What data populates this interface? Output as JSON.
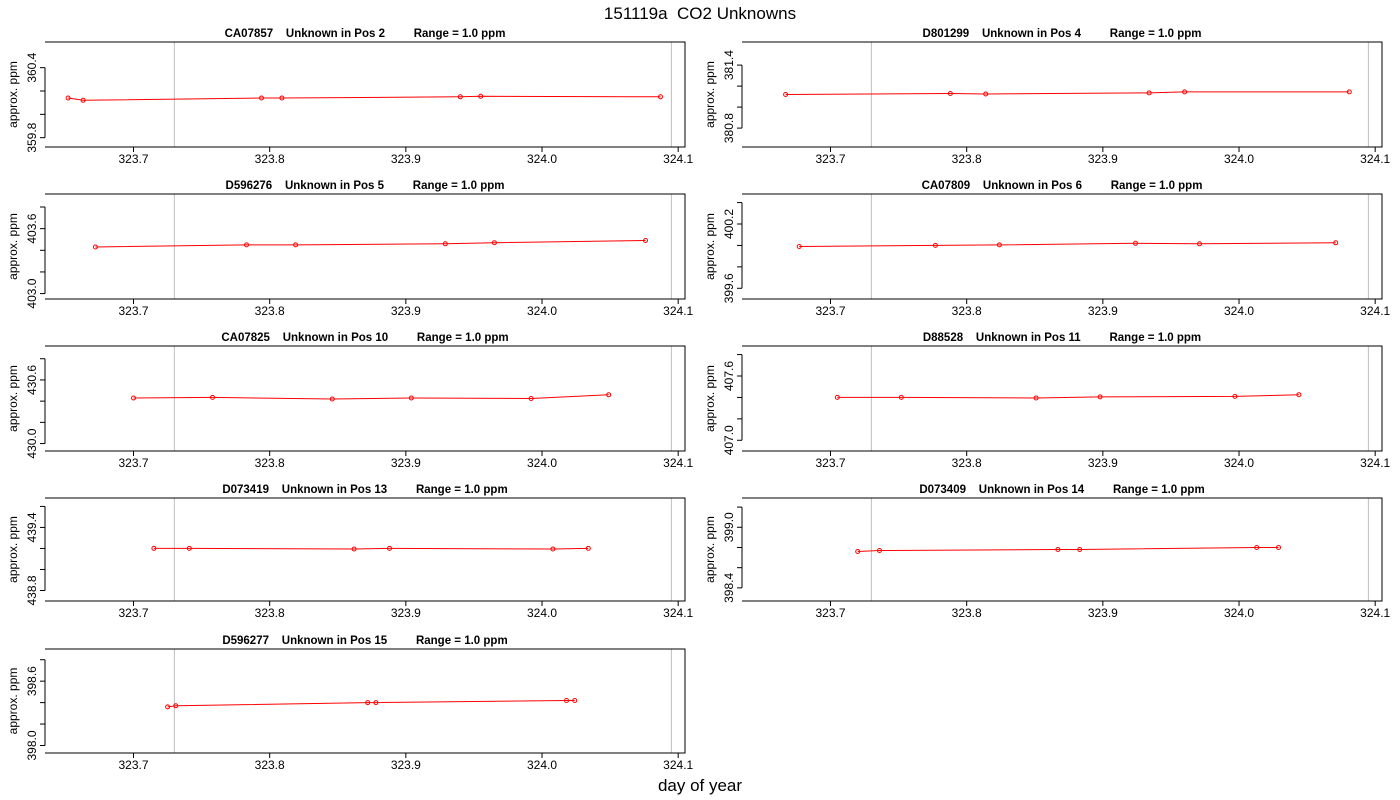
{
  "title": "151119a  CO2 Unknowns",
  "xlabel": "day of year",
  "colors": {
    "series": "#ff0000",
    "frame": "#000000",
    "vline": "#bebebe"
  },
  "chart_data": [
    {
      "type": "line",
      "title": "CA07857    Unknown in Pos 2         Range = 1.0 ppm",
      "ylabel": "approx. ppm",
      "xlim": [
        323.635,
        324.105
      ],
      "ylim": [
        359.72,
        360.62
      ],
      "xticks": [
        "323.7",
        "323.8",
        "323.9",
        "324.0",
        "324.1"
      ],
      "yticks": [
        "359.8",
        "360.0",
        "360.2",
        "360.4"
      ],
      "yticks_labeled": [
        "359.8",
        "360.4"
      ],
      "vlines": [
        323.73,
        324.095
      ],
      "x": [
        323.652,
        323.663,
        323.794,
        323.809,
        323.94,
        323.955,
        324.087
      ],
      "y": [
        360.14,
        360.12,
        360.14,
        360.14,
        360.15,
        360.155,
        360.15
      ]
    },
    {
      "type": "line",
      "title": "D801299    Unknown in Pos 4         Range = 1.0 ppm",
      "ylabel": "approx. ppm",
      "xlim": [
        323.635,
        324.105
      ],
      "ylim": [
        380.62,
        381.62
      ],
      "xticks": [
        "323.7",
        "323.8",
        "323.9",
        "324.0",
        "324.1"
      ],
      "yticks": [
        "380.8",
        "381.0",
        "381.2",
        "381.4"
      ],
      "yticks_labeled": [
        "380.8",
        "381.4"
      ],
      "vlines": [
        323.73,
        324.095
      ],
      "x": [
        323.667,
        323.788,
        323.814,
        323.934,
        323.96,
        324.081
      ],
      "y": [
        381.12,
        381.13,
        381.125,
        381.135,
        381.145,
        381.145
      ]
    },
    {
      "type": "line",
      "title": "D596276    Unknown in Pos 5         Range = 1.0 ppm",
      "ylabel": "approx. ppm",
      "xlim": [
        323.635,
        324.105
      ],
      "ylim": [
        402.95,
        403.92
      ],
      "xticks": [
        "323.7",
        "323.8",
        "323.9",
        "324.0",
        "324.1"
      ],
      "yticks": [
        "403.0",
        "403.2",
        "403.4",
        "403.6",
        "403.8"
      ],
      "yticks_labeled": [
        "403.0",
        "403.6"
      ],
      "vlines": [
        323.73,
        324.095
      ],
      "x": [
        323.672,
        323.783,
        323.819,
        323.929,
        323.965,
        324.076
      ],
      "y": [
        403.43,
        403.45,
        403.45,
        403.46,
        403.47,
        403.49
      ]
    },
    {
      "type": "line",
      "title": "CA07809    Unknown in Pos 6         Range = 1.0 ppm",
      "ylabel": "approx. ppm",
      "xlim": [
        323.635,
        324.105
      ],
      "ylim": [
        399.5,
        400.48
      ],
      "xticks": [
        "323.7",
        "323.8",
        "323.9",
        "324.0",
        "324.1"
      ],
      "yticks": [
        "399.6",
        "399.8",
        "400.0",
        "400.2",
        "400.4"
      ],
      "yticks_labeled": [
        "399.6",
        "400.2"
      ],
      "vlines": [
        323.73,
        324.095
      ],
      "x": [
        323.677,
        323.777,
        323.824,
        323.924,
        323.971,
        324.071
      ],
      "y": [
        399.99,
        400.0,
        400.005,
        400.02,
        400.015,
        400.025
      ]
    },
    {
      "type": "line",
      "title": "CA07825    Unknown in Pos 10         Range = 1.0 ppm",
      "ylabel": "approx. ppm",
      "xlim": [
        323.635,
        324.105
      ],
      "ylim": [
        429.93,
        430.92
      ],
      "xticks": [
        "323.7",
        "323.8",
        "323.9",
        "324.0",
        "324.1"
      ],
      "yticks": [
        "430.0",
        "430.2",
        "430.4",
        "430.6",
        "430.8"
      ],
      "yticks_labeled": [
        "430.0",
        "430.6"
      ],
      "vlines": [
        323.73,
        324.095
      ],
      "x": [
        323.7,
        323.758,
        323.846,
        323.904,
        323.992,
        324.049
      ],
      "y": [
        430.43,
        430.435,
        430.42,
        430.43,
        430.425,
        430.46
      ]
    },
    {
      "type": "line",
      "title": "D88528    Unknown in Pos 11         Range = 1.0 ppm",
      "ylabel": "approx. ppm",
      "xlim": [
        323.635,
        324.105
      ],
      "ylim": [
        406.9,
        407.88
      ],
      "xticks": [
        "323.7",
        "323.8",
        "323.9",
        "324.0",
        "324.1"
      ],
      "yticks": [
        "407.0",
        "407.2",
        "407.4",
        "407.6",
        "407.8"
      ],
      "yticks_labeled": [
        "407.0",
        "407.6"
      ],
      "vlines": [
        323.73,
        324.095
      ],
      "x": [
        323.705,
        323.752,
        323.851,
        323.898,
        323.997,
        324.044
      ],
      "y": [
        407.4,
        407.4,
        407.395,
        407.405,
        407.41,
        407.425
      ]
    },
    {
      "type": "line",
      "title": "D073419    Unknown in Pos 13         Range = 1.0 ppm",
      "ylabel": "approx. ppm",
      "xlim": [
        323.635,
        324.105
      ],
      "ylim": [
        438.7,
        439.68
      ],
      "xticks": [
        "323.7",
        "323.8",
        "323.9",
        "324.0",
        "324.1"
      ],
      "yticks": [
        "438.8",
        "439.0",
        "439.2",
        "439.4",
        "439.6"
      ],
      "yticks_labeled": [
        "438.8",
        "439.4"
      ],
      "vlines": [
        323.73,
        324.095
      ],
      "x": [
        323.715,
        323.741,
        323.862,
        323.888,
        324.008,
        324.034
      ],
      "y": [
        439.2,
        439.2,
        439.195,
        439.2,
        439.195,
        439.2
      ]
    },
    {
      "type": "line",
      "title": "D073409    Unknown in Pos 14         Range = 1.0 ppm",
      "ylabel": "approx. ppm",
      "xlim": [
        323.635,
        324.105
      ],
      "ylim": [
        398.27,
        399.29
      ],
      "xticks": [
        "323.7",
        "323.8",
        "323.9",
        "324.0",
        "324.1"
      ],
      "yticks": [
        "398.4",
        "398.6",
        "398.8",
        "399.0",
        "399.2"
      ],
      "yticks_labeled": [
        "398.4",
        "399.0"
      ],
      "vlines": [
        323.73,
        324.095
      ],
      "x": [
        323.72,
        323.736,
        323.867,
        323.883,
        324.013,
        324.029
      ],
      "y": [
        398.76,
        398.77,
        398.78,
        398.78,
        398.8,
        398.8
      ]
    },
    {
      "type": "line",
      "title": "D596277    Unknown in Pos 15         Range = 1.0 ppm",
      "ylabel": "approx. ppm",
      "xlim": [
        323.635,
        324.105
      ],
      "ylim": [
        397.93,
        398.9
      ],
      "xticks": [
        "323.7",
        "323.8",
        "323.9",
        "324.0",
        "324.1"
      ],
      "yticks": [
        "398.0",
        "398.2",
        "398.4",
        "398.6",
        "398.8"
      ],
      "yticks_labeled": [
        "398.0",
        "398.6"
      ],
      "vlines": [
        323.73,
        324.095
      ],
      "x": [
        323.725,
        323.731,
        323.872,
        323.878,
        324.018,
        324.024
      ],
      "y": [
        398.36,
        398.37,
        398.4,
        398.4,
        398.42,
        398.42
      ]
    }
  ]
}
